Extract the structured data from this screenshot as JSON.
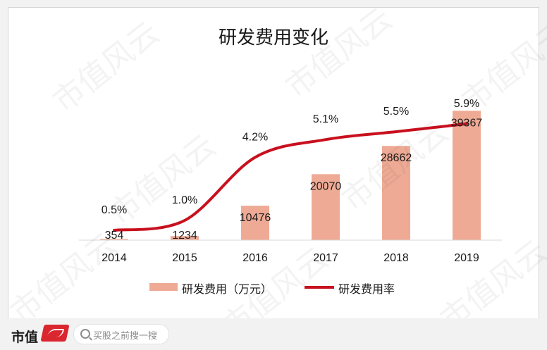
{
  "chart_data": {
    "type": "bar",
    "title": "研发费用变化",
    "categories": [
      "2014",
      "2015",
      "2016",
      "2017",
      "2018",
      "2019"
    ],
    "series": [
      {
        "name": "研发费用（万元）",
        "type": "bar",
        "values": [
          354,
          1234,
          10476,
          20070,
          28662,
          39367
        ],
        "data_labels": [
          "354",
          "1234",
          "10476",
          "20070",
          "28662",
          "39367"
        ],
        "color": "#eeaa95"
      },
      {
        "name": "研发费用率",
        "type": "line",
        "values": [
          0.5,
          1.0,
          4.2,
          5.1,
          5.5,
          5.9
        ],
        "data_labels": [
          "0.5%",
          "1.0%",
          "4.2%",
          "5.1%",
          "5.5%",
          "5.9%"
        ],
        "color": "#c8101e"
      }
    ],
    "ylim": [
      0,
      45000
    ],
    "y2lim": [
      0,
      7.5
    ],
    "legend": "bottom",
    "grid": false
  },
  "watermark": "市值风云",
  "footer": {
    "brand": "市值",
    "search_text": "买股之前搜一搜"
  }
}
